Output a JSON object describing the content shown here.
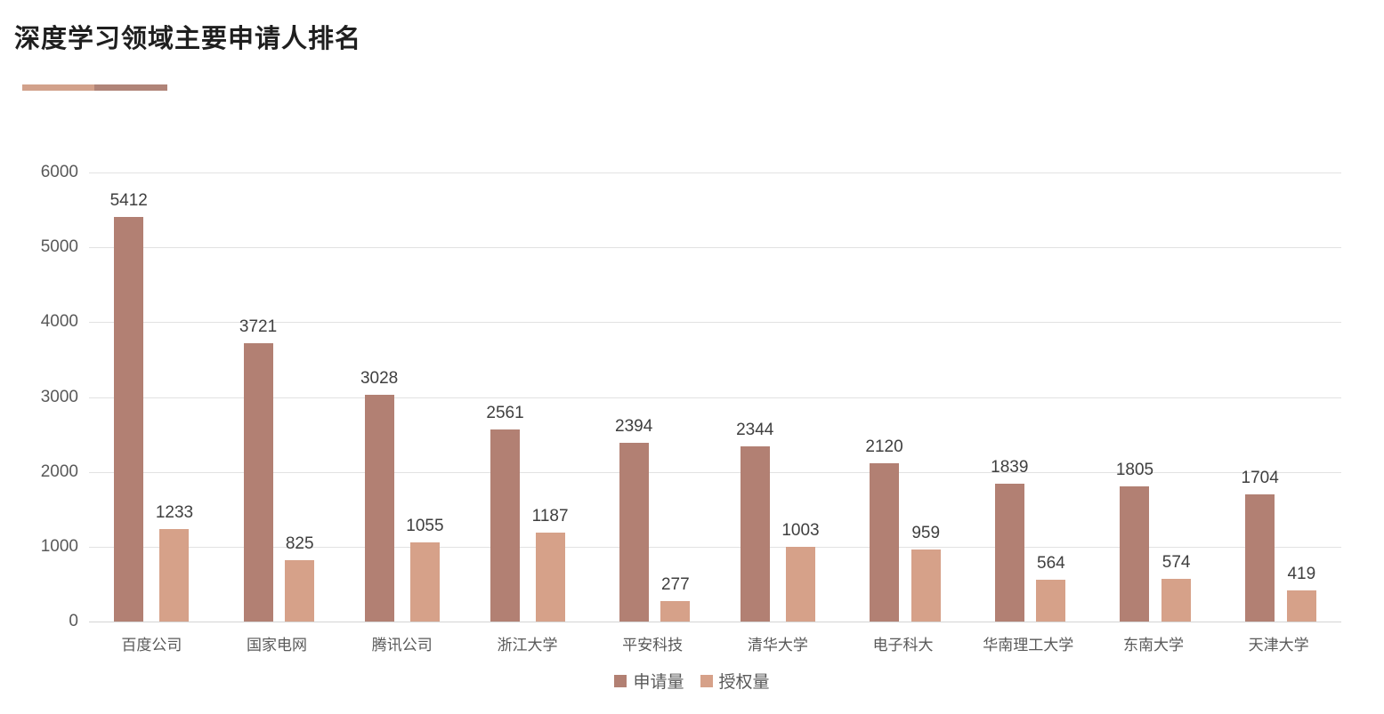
{
  "chart_data": {
    "type": "bar",
    "title": "深度学习领域主要申请人排名",
    "categories": [
      "百度公司",
      "国家电网",
      "腾讯公司",
      "浙江大学",
      "平安科技",
      "清华大学",
      "电子科大",
      "华南理工大学",
      "东南大学",
      "天津大学"
    ],
    "series": [
      {
        "name": "申请量",
        "color": "#b28073",
        "values": [
          5412,
          3721,
          3028,
          2561,
          2394,
          2344,
          2120,
          1839,
          1805,
          1704
        ]
      },
      {
        "name": "授权量",
        "color": "#d6a189",
        "values": [
          1233,
          825,
          1055,
          1187,
          277,
          1003,
          959,
          564,
          574,
          419
        ]
      }
    ],
    "ylim": [
      0,
      6000
    ],
    "yticks": [
      0,
      1000,
      2000,
      3000,
      4000,
      5000,
      6000
    ],
    "grid": true,
    "legend_position": "bottom",
    "accent_colors": {
      "light": "#d2a18b",
      "dark": "#b08478"
    },
    "axis_label_color": "#595959",
    "value_label_color": "#3f3f3f"
  }
}
